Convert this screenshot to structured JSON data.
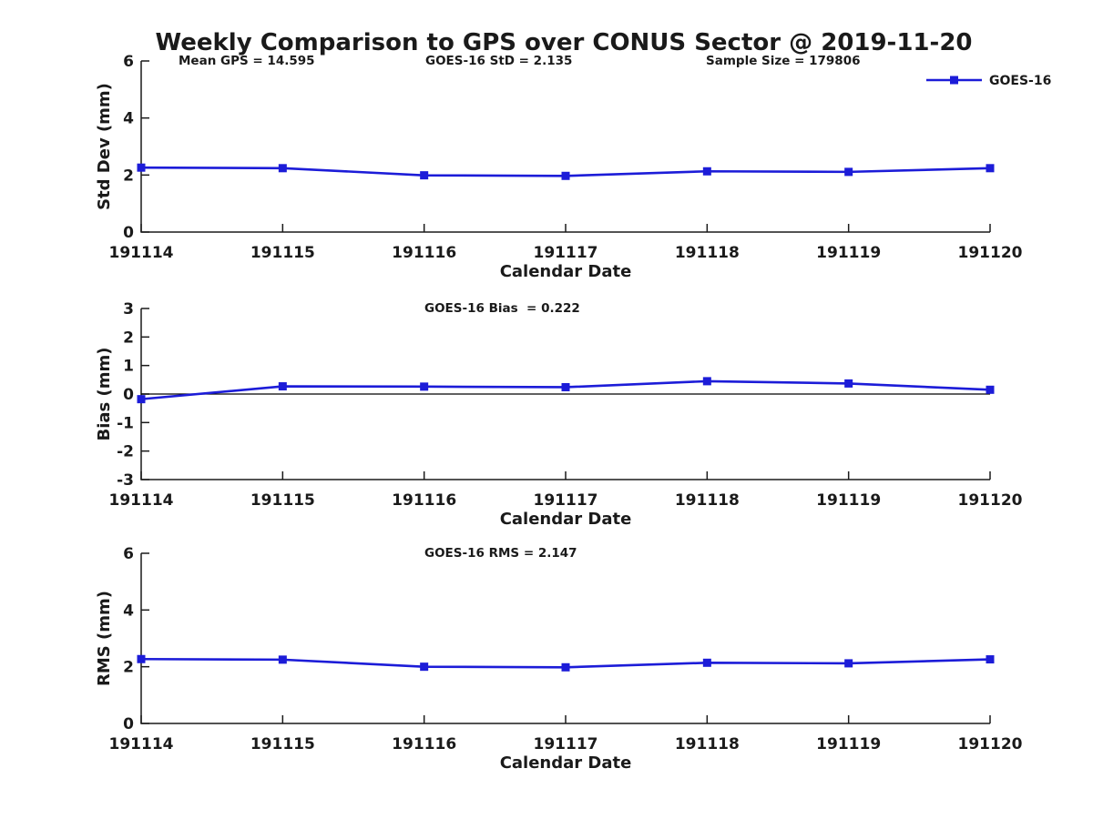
{
  "title": "Weekly Comparison to GPS over CONUS Sector @ 2019-11-20",
  "colors": {
    "series": "#1c1cd8",
    "axis": "#1a1a1a",
    "background": "#ffffff"
  },
  "legend": {
    "label": "GOES-16",
    "position": "top-right"
  },
  "chart_data": [
    {
      "type": "line",
      "name": "std-dev-vs-date",
      "categories": [
        "191114",
        "191115",
        "191116",
        "191117",
        "191118",
        "191119",
        "191120"
      ],
      "series": [
        {
          "name": "GOES-16",
          "values": [
            2.26,
            2.24,
            1.99,
            1.97,
            2.13,
            2.11,
            2.24
          ]
        }
      ],
      "ylabel": "Std Dev (mm)",
      "xlabel": "Calendar Date",
      "ylim": [
        0,
        6
      ],
      "yticks": [
        0,
        2,
        4,
        6
      ],
      "grid": false,
      "zero_line": false,
      "annotations": [
        "Mean GPS = 14.595",
        "GOES-16 StD = 2.135",
        "Sample Size = 179806"
      ]
    },
    {
      "type": "line",
      "name": "bias-vs-date",
      "categories": [
        "191114",
        "191115",
        "191116",
        "191117",
        "191118",
        "191119",
        "191120"
      ],
      "series": [
        {
          "name": "GOES-16",
          "values": [
            -0.18,
            0.27,
            0.26,
            0.24,
            0.45,
            0.37,
            0.15
          ]
        }
      ],
      "ylabel": "Bias (mm)",
      "xlabel": "Calendar Date",
      "ylim": [
        -3,
        3
      ],
      "yticks": [
        -3,
        -2,
        -1,
        0,
        1,
        2,
        3
      ],
      "grid": false,
      "zero_line": true,
      "annotations": [
        "GOES-16 Bias  = 0.222"
      ]
    },
    {
      "type": "line",
      "name": "rms-vs-date",
      "categories": [
        "191114",
        "191115",
        "191116",
        "191117",
        "191118",
        "191119",
        "191120"
      ],
      "series": [
        {
          "name": "GOES-16",
          "values": [
            2.27,
            2.25,
            2.0,
            1.98,
            2.14,
            2.12,
            2.26
          ]
        }
      ],
      "ylabel": "RMS (mm)",
      "xlabel": "Calendar Date",
      "ylim": [
        0,
        6
      ],
      "yticks": [
        0,
        2,
        4,
        6
      ],
      "grid": false,
      "zero_line": false,
      "annotations": [
        "GOES-16 RMS = 2.147"
      ]
    }
  ]
}
